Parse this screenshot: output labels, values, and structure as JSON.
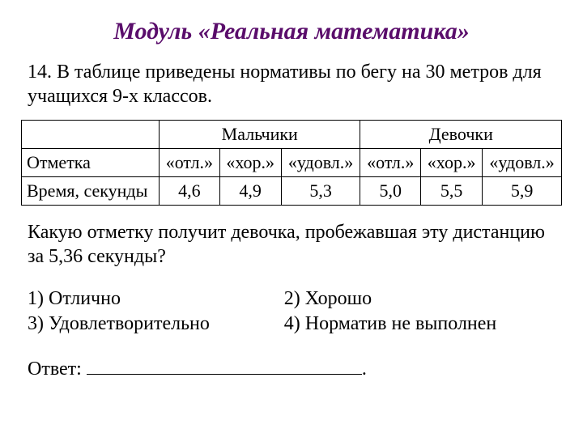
{
  "title_text": "Модуль «Реальная математика»",
  "title_color": "#5a0d6b",
  "problem_text": "14. В таблице приведены нормативы по бегу на 30 метров для учащихся 9-х классов.",
  "table": {
    "group_headers": [
      "Мальчики",
      "Девочки"
    ],
    "row_label_1": "Отметка",
    "row_label_2": "Время, секунды",
    "grade_labels": [
      "«отл.»",
      "«хор.»",
      "«удовл.»",
      "«отл.»",
      "«хор.»",
      "«удовл.»"
    ],
    "times": [
      "4,6",
      "4,9",
      "5,3",
      "5,0",
      "5,5",
      "5,9"
    ]
  },
  "question_text": "Какую отметку получит девочка, пробежавшая эту дистанцию за 5,36 секунды?",
  "options": {
    "o1": "1)  Отлично",
    "o2": "2) Хорошо",
    "o3": "3)  Удовлетворительно",
    "o4": "4) Норматив не выполнен"
  },
  "answer_label": "Ответ: ",
  "answer_period": "."
}
